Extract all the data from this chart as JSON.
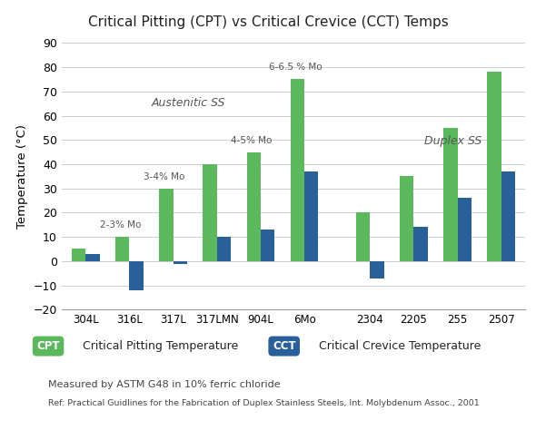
{
  "title": "Critical Pitting (CPT) vs Critical Crevice (CCT) Temps",
  "ylabel": "Temperature (°C)",
  "categories": [
    "304L",
    "316L",
    "317L",
    "317LMN",
    "904L",
    "6Mo",
    "2304",
    "2205",
    "255",
    "2507"
  ],
  "cpt_values": [
    5,
    10,
    30,
    40,
    45,
    75,
    20,
    35,
    55,
    78
  ],
  "cct_values": [
    3,
    -12,
    -1,
    10,
    13,
    37,
    -7,
    14,
    26,
    37
  ],
  "cpt_color": "#5cb85c",
  "cct_color": "#2a6099",
  "ylim": [
    -20,
    90
  ],
  "yticks": [
    -20,
    -10,
    0,
    10,
    20,
    30,
    40,
    50,
    60,
    70,
    80,
    90
  ],
  "mo_labels": [
    {
      "text": "2-3% Mo",
      "cat_idx": 1,
      "y": 13
    },
    {
      "text": "3-4% Mo",
      "cat_idx": 2,
      "y": 33
    },
    {
      "text": "4-5% Mo",
      "cat_idx": 4,
      "y": 48
    },
    {
      "text": "6-6.5 % Mo",
      "cat_idx": 5,
      "y": 78
    }
  ],
  "group_label_austenitic": {
    "text": "Austenitic SS",
    "cat_idx": 1,
    "xoff": 0.5,
    "y": 63
  },
  "group_label_duplex": {
    "text": "Duplex SS",
    "cat_idx": 8,
    "xoff": -0.1,
    "y": 47
  },
  "legend_cpt_label": "Critical Pitting Temperature",
  "legend_cct_label": "Critical Crevice Temperature",
  "footnote1": "Measured by ASTM G48 in 10% ferric chloride",
  "footnote2": "Ref: Practical Guidlines for the Fabrication of Duplex Stainless Steels, Int. Molybdenum Assoc., 2001",
  "bar_width": 0.32,
  "background_color": "#ffffff",
  "grid_color": "#cccccc"
}
